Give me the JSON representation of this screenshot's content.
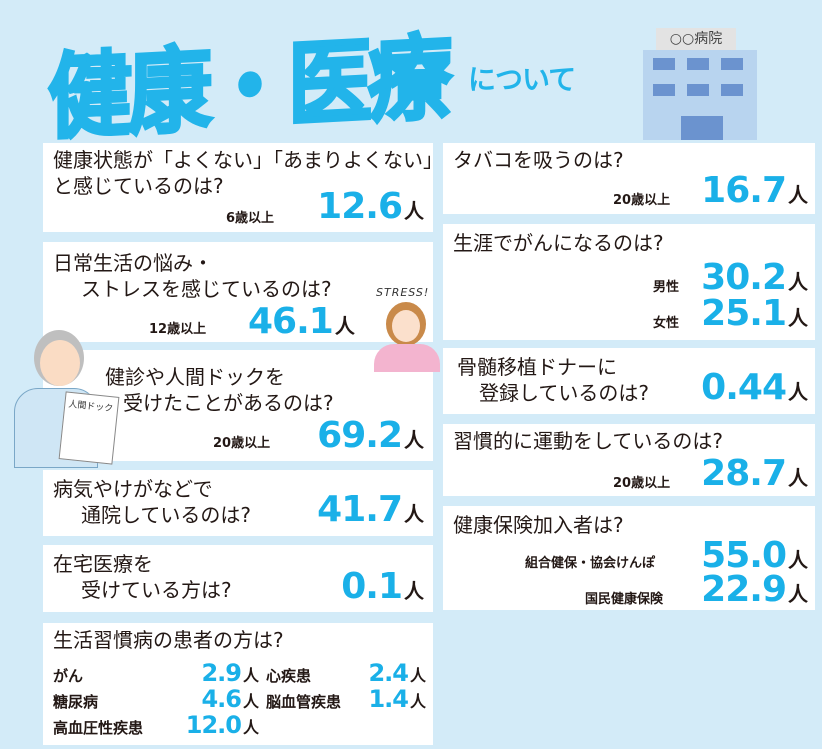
{
  "header": {
    "title": "健康・医療",
    "subtitle": "について",
    "hospital_sign": "○○病院"
  },
  "colors": {
    "accent": "#1ab0e8",
    "background": "#d3ebf8"
  },
  "illustrations": {
    "stress_text": "STRESS!",
    "clipboard_text": "人間ドック"
  },
  "unit": "人",
  "left": [
    {
      "q1": "健康状態が「よくない」「あまりよくない」",
      "q2": "と感じているのは?",
      "label": "6歳以上",
      "value": "12.6"
    },
    {
      "q1": "日常生活の悩み・",
      "q2": "ストレスを感じているのは?",
      "label": "12歳以上",
      "value": "46.1"
    },
    {
      "q1": "健診や人間ドックを",
      "q2": "受けたことがあるのは?",
      "label": "20歳以上",
      "value": "69.2"
    },
    {
      "q1": "病気やけがなどで",
      "q2": "通院しているのは?",
      "value": "41.7"
    },
    {
      "q1": "在宅医療を",
      "q2": "受けている方は?",
      "value": "0.1"
    }
  ],
  "lifestyle": {
    "q": "生活習慣病の患者の方は?",
    "items": [
      {
        "label": "がん",
        "value": "2.9"
      },
      {
        "label": "心疾患",
        "value": "2.4"
      },
      {
        "label": "糖尿病",
        "value": "4.6"
      },
      {
        "label": "脳血管疾患",
        "value": "1.4"
      },
      {
        "label": "高血圧性疾患",
        "value": "12.0"
      }
    ]
  },
  "right": [
    {
      "q1": "タバコを吸うのは?",
      "label": "20歳以上",
      "value": "16.7"
    },
    {
      "q1": "生涯でがんになるのは?",
      "rows": [
        {
          "label": "男性",
          "value": "30.2"
        },
        {
          "label": "女性",
          "value": "25.1"
        }
      ]
    },
    {
      "q1": "骨髄移植ドナーに",
      "q2": "登録しているのは?",
      "value": "0.44"
    },
    {
      "q1": "習慣的に運動をしているのは?",
      "label": "20歳以上",
      "value": "28.7"
    },
    {
      "q1": "健康保険加入者は?",
      "rows": [
        {
          "label": "組合健保・協会けんぽ",
          "value": "55.0"
        },
        {
          "label": "国民健康保険",
          "value": "22.9"
        }
      ]
    }
  ]
}
